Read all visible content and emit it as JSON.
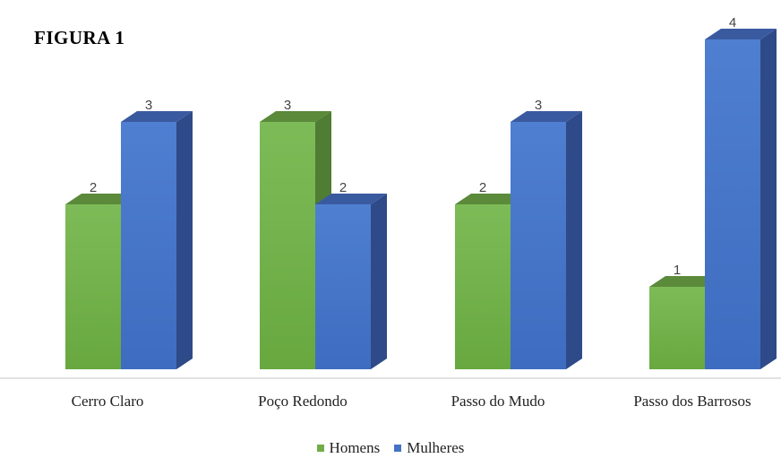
{
  "figure_title": "FIGURA 1",
  "chart_data": {
    "type": "bar",
    "categories": [
      "Cerro Claro",
      "Poço Redondo",
      "Passo do Mudo",
      "Passo dos Barrosos"
    ],
    "series": [
      {
        "name": "Homens",
        "values": [
          2,
          3,
          2,
          1
        ],
        "color": "#70ad47"
      },
      {
        "name": "Mulheres",
        "values": [
          3,
          2,
          3,
          4
        ],
        "color": "#4472c4"
      }
    ],
    "ylim": [
      0,
      4
    ],
    "grid": false,
    "legend_position": "bottom",
    "three_d": true
  }
}
